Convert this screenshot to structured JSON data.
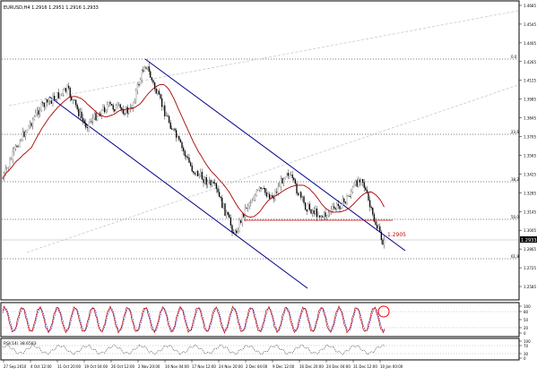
{
  "header": {
    "title": "EURUSD,H4  1.2916 1.2951 1.2916 1.2933"
  },
  "price_axis": {
    "ticks": [
      "1.4685",
      "1.4545",
      "1.4405",
      "1.4265",
      "1.4125",
      "1.3985",
      "1.3845",
      "1.3705",
      "1.3565",
      "1.3425",
      "1.3285",
      "1.3145",
      "1.3005",
      "1.2865",
      "1.2725",
      "1.2585"
    ],
    "current_price": "1.2933"
  },
  "fib_labels": [
    "0.0",
    "23.6",
    "38.2",
    "50.0",
    "61.8"
  ],
  "annotation": {
    "level_label": "1.2905",
    "level_color": "#cc0000"
  },
  "stochastic": {
    "ticks": [
      "100",
      "80",
      "50",
      "20",
      "0"
    ]
  },
  "rsi": {
    "label": "RSI(14) 38.6583",
    "ticks": [
      "100",
      "70",
      "30",
      "0"
    ]
  },
  "time_axis": {
    "labels": [
      "27 Sep 2010",
      "4 Oct 12:00",
      "11 Oct 20:00",
      "19 Oct 04:00",
      "26 Oct 12:00",
      "2 Nov 20:00",
      "10 Nov 04:00",
      "17 Nov 12:00",
      "24 Nov 20:00",
      "2 Dec 04:00",
      "9 Dec 12:00",
      "16 Dec 20:00",
      "24 Dec 04:00",
      "31 Dec 12:00",
      "10 Jan 00:00"
    ]
  },
  "colors": {
    "channel": "#00008b",
    "moving_average": "#aa0000",
    "candles": "#000000",
    "trend_dotted": "#c8c8c8",
    "stoch_main": "#cc0000",
    "stoch_signal": "#0000aa",
    "highlight_circle": "#ff0000"
  }
}
